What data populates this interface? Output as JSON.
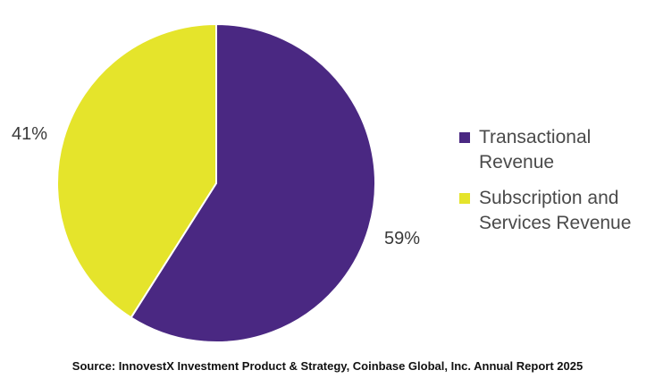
{
  "chart_data": {
    "type": "pie",
    "slices": [
      {
        "label": "Transactional Revenue",
        "value": 59,
        "value_label": "59%",
        "color": "#4a2882"
      },
      {
        "label": "Subscription and Services Revenue",
        "value": 41,
        "value_label": "41%",
        "color": "#e5e42b"
      }
    ],
    "legend_placement": "right",
    "source": "Source: InnovestX Investment Product & Strategy, Coinbase Global, Inc. Annual Report 2025"
  },
  "legend": {
    "items": [
      {
        "line1": "Transactional",
        "line2": "Revenue",
        "color": "#4a2882"
      },
      {
        "line1": "Subscription and",
        "line2": "Services Revenue",
        "color": "#e5e42b"
      }
    ]
  }
}
